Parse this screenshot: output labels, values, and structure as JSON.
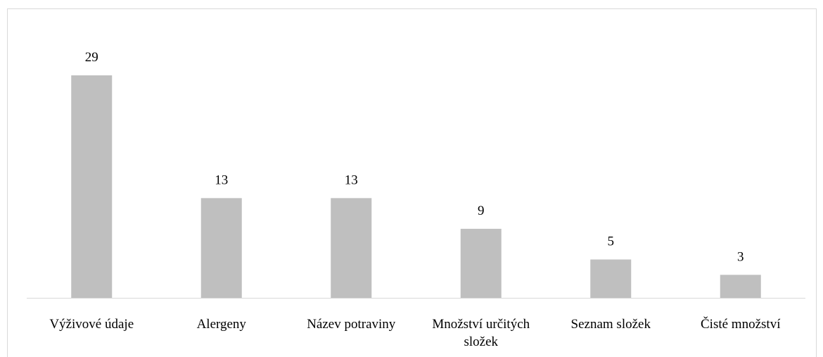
{
  "chart_data": {
    "type": "bar",
    "categories": [
      "Výživové údaje",
      "Alergeny",
      "Název potraviny",
      "Množství určitých složek",
      "Seznam složek",
      "Čisté množství"
    ],
    "values": [
      29,
      13,
      13,
      9,
      5,
      3
    ],
    "color": "#bfbfbf"
  }
}
